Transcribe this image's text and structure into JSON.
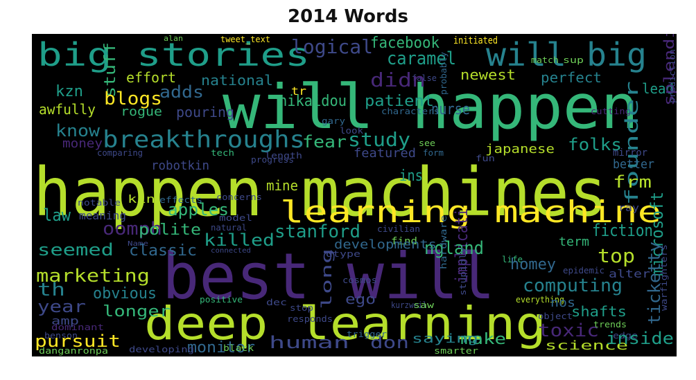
{
  "title": "2014 Words",
  "palette": {
    "background": "#000000",
    "yellow": "#fde725",
    "lime": "#b5de2b",
    "green": "#6ece58",
    "teal": "#35b779",
    "teal2": "#1f9e89",
    "cyan": "#26828e",
    "blue": "#31688e",
    "indigo": "#3e4989",
    "purple": "#482878",
    "dark": "#440154"
  },
  "words": [
    {
      "text": "happen machines",
      "color": "#b5de2b"
    },
    {
      "text": "will happen",
      "color": "#35b779"
    },
    {
      "text": "best will",
      "color": "#482878"
    },
    {
      "text": "deep learning",
      "color": "#b5de2b"
    },
    {
      "text": "learning machine",
      "color": "#fde725"
    },
    {
      "text": "big stories",
      "color": "#1f9e89"
    },
    {
      "text": "will big",
      "color": "#26828e"
    },
    {
      "text": "breakthroughs",
      "color": "#26828e"
    },
    {
      "text": "logical",
      "color": "#3e4989"
    },
    {
      "text": "facebook",
      "color": "#35b779"
    },
    {
      "text": "caramel",
      "color": "#1f9e89"
    },
    {
      "text": "initiated",
      "color": "#fde725"
    },
    {
      "text": "alan",
      "color": "#6ece58"
    },
    {
      "text": "tweet_text",
      "color": "#fde725"
    },
    {
      "text": "sup",
      "color": "#6ece58"
    },
    {
      "text": "match",
      "color": "#6ece58"
    },
    {
      "text": "false",
      "color": "#3e4989"
    },
    {
      "text": "probably",
      "color": "#31688e"
    },
    {
      "text": "stuff",
      "color": "#35b779"
    },
    {
      "text": "effort",
      "color": "#b5de2b"
    },
    {
      "text": "national",
      "color": "#26828e"
    },
    {
      "text": "nikaidou",
      "color": "#35b779"
    },
    {
      "text": "newest",
      "color": "#b5de2b"
    },
    {
      "text": "perfect",
      "color": "#26828e"
    },
    {
      "text": "kzn",
      "color": "#1f9e89"
    },
    {
      "text": "adds",
      "color": "#31688e"
    },
    {
      "text": "blogs",
      "color": "#fde725"
    },
    {
      "text": "didn",
      "color": "#482878"
    },
    {
      "text": "tr",
      "color": "#fde725"
    },
    {
      "text": "lead",
      "color": "#1f9e89"
    },
    {
      "text": "awfully",
      "color": "#b5de2b"
    },
    {
      "text": "rogue",
      "color": "#35b779"
    },
    {
      "text": "pouring",
      "color": "#3e4989"
    },
    {
      "text": "patient",
      "color": "#1f9e89"
    },
    {
      "text": "characters",
      "color": "#31688e"
    },
    {
      "text": "gary",
      "color": "#31688e"
    },
    {
      "text": "know",
      "color": "#26828e"
    },
    {
      "text": "fear",
      "color": "#35b779"
    },
    {
      "text": "study",
      "color": "#1f9e89"
    },
    {
      "text": "look",
      "color": "#3e4989"
    },
    {
      "text": "nurse",
      "color": "#31688e"
    },
    {
      "text": "cutting",
      "color": "#482878"
    },
    {
      "text": "splendid",
      "color": "#482878"
    },
    {
      "text": "money",
      "color": "#482878"
    },
    {
      "text": "comparing",
      "color": "#3e4989"
    },
    {
      "text": "robotkin",
      "color": "#3e4989"
    },
    {
      "text": "tech",
      "color": "#35b779"
    },
    {
      "text": "featured",
      "color": "#3e4989"
    },
    {
      "text": "see",
      "color": "#6ece58"
    },
    {
      "text": "japanese",
      "color": "#b5de2b"
    },
    {
      "text": "folks",
      "color": "#1f9e89"
    },
    {
      "text": "founder",
      "color": "#26828e"
    },
    {
      "text": "mirror",
      "color": "#3e4989"
    },
    {
      "text": "prediction",
      "color": "#3e4989"
    },
    {
      "text": "length",
      "color": "#3e4989"
    },
    {
      "text": "progress",
      "color": "#3e4989"
    },
    {
      "text": "form",
      "color": "#31688e"
    },
    {
      "text": "fun",
      "color": "#3e4989"
    },
    {
      "text": "better",
      "color": "#31688e"
    },
    {
      "text": "frm",
      "color": "#b5de2b"
    },
    {
      "text": "mine",
      "color": "#b5de2b"
    },
    {
      "text": "ins",
      "color": "#1f9e89"
    },
    {
      "text": "notable",
      "color": "#3e4989"
    },
    {
      "text": "kin",
      "color": "#b5de2b"
    },
    {
      "text": "effects",
      "color": "#31688e"
    },
    {
      "text": "concerns",
      "color": "#3e4989"
    },
    {
      "text": "law",
      "color": "#1f9e89"
    },
    {
      "text": "apples",
      "color": "#35b779"
    },
    {
      "text": "ray",
      "color": "#3e4989"
    },
    {
      "text": "meaning",
      "color": "#3e4989"
    },
    {
      "text": "oomph",
      "color": "#482878"
    },
    {
      "text": "polite",
      "color": "#35b779"
    },
    {
      "text": "model",
      "color": "#3e4989"
    },
    {
      "text": "natural",
      "color": "#3e4989"
    },
    {
      "text": "stanford",
      "color": "#1f9e89"
    },
    {
      "text": "fiction",
      "color": "#1f9e89"
    },
    {
      "text": "implicati",
      "color": "#482878"
    },
    {
      "text": "microsoft",
      "color": "#1f9e89"
    },
    {
      "text": "ticketty",
      "color": "#31688e"
    },
    {
      "text": "ngland",
      "color": "#35b779"
    },
    {
      "text": "civilian",
      "color": "#3e4989"
    },
    {
      "text": "find",
      "color": "#6ece58"
    },
    {
      "text": "Name",
      "color": "#3e4989"
    },
    {
      "text": "connected",
      "color": "#3e4989"
    },
    {
      "text": "seemed",
      "color": "#1f9e89"
    },
    {
      "text": "classic",
      "color": "#31688e"
    },
    {
      "text": "killed",
      "color": "#1f9e89"
    },
    {
      "text": "developments",
      "color": "#31688e"
    },
    {
      "text": "term",
      "color": "#35b779"
    },
    {
      "text": "top",
      "color": "#b5de2b"
    },
    {
      "text": "dtype",
      "color": "#3e4989"
    },
    {
      "text": "hardware",
      "color": "#31688e"
    },
    {
      "text": "stupidly",
      "color": "#3e4989"
    },
    {
      "text": "life",
      "color": "#35b779"
    },
    {
      "text": "homey",
      "color": "#31688e"
    },
    {
      "text": "marketing",
      "color": "#b5de2b"
    },
    {
      "text": "epidemic",
      "color": "#3e4989"
    },
    {
      "text": "alter",
      "color": "#3e4989"
    },
    {
      "text": "long",
      "color": "#3e4989"
    },
    {
      "text": "cosmos",
      "color": "#3e4989"
    },
    {
      "text": "computing",
      "color": "#26828e"
    },
    {
      "text": "th",
      "color": "#26828e"
    },
    {
      "text": "obvious",
      "color": "#26828e"
    },
    {
      "text": "positive",
      "color": "#35b779"
    },
    {
      "text": "ego",
      "color": "#3e4989"
    },
    {
      "text": "warfighters",
      "color": "#3e4989"
    },
    {
      "text": "year",
      "color": "#3e4989"
    },
    {
      "text": "amp",
      "color": "#3e4989"
    },
    {
      "text": "dominant",
      "color": "#482878"
    },
    {
      "text": "dec",
      "color": "#3e4989"
    },
    {
      "text": "kurzweil",
      "color": "#3e4989"
    },
    {
      "text": "stop",
      "color": "#3e4989"
    },
    {
      "text": "responds",
      "color": "#3e4989"
    },
    {
      "text": "saw",
      "color": "#6ece58"
    },
    {
      "text": "everything",
      "color": "#b5de2b"
    },
    {
      "text": "nos",
      "color": "#31688e"
    },
    {
      "text": "object",
      "color": "#3e4989"
    },
    {
      "text": "shafts",
      "color": "#1f9e89"
    },
    {
      "text": "longer",
      "color": "#35b779"
    },
    {
      "text": "toxic",
      "color": "#482878"
    },
    {
      "text": "trends",
      "color": "#6ece58"
    },
    {
      "text": "edge",
      "color": "#3e4989"
    },
    {
      "text": "benson",
      "color": "#3e4989"
    },
    {
      "text": "pursuit",
      "color": "#fde725"
    },
    {
      "text": "human",
      "color": "#3e4989"
    },
    {
      "text": "don",
      "color": "#3e4989"
    },
    {
      "text": "make",
      "color": "#35b779"
    },
    {
      "text": "saying",
      "color": "#26828e"
    },
    {
      "text": "science",
      "color": "#b5de2b"
    },
    {
      "text": "inside",
      "color": "#1f9e89"
    },
    {
      "text": "monitor",
      "color": "#31688e"
    },
    {
      "text": "trigger",
      "color": "#31688e"
    },
    {
      "text": "danganronpa",
      "color": "#6ece58"
    },
    {
      "text": "developing",
      "color": "#3e4989"
    },
    {
      "text": "black",
      "color": "#6ece58"
    },
    {
      "text": "smarter",
      "color": "#6ece58"
    }
  ]
}
